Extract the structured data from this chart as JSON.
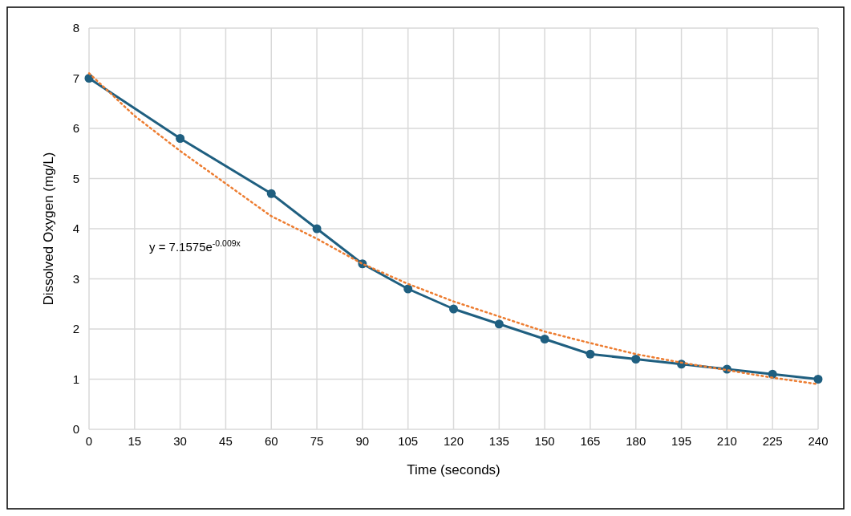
{
  "chart_data": {
    "type": "line",
    "xlabel": "Time (seconds)",
    "ylabel": "Dissolved Oxygen (mg/L)",
    "xlim": [
      0,
      240
    ],
    "xticks": [
      0,
      15,
      30,
      45,
      60,
      75,
      90,
      105,
      120,
      135,
      150,
      165,
      180,
      195,
      210,
      225,
      240
    ],
    "ylim": [
      0,
      8
    ],
    "yticks": [
      0,
      1,
      2,
      3,
      4,
      5,
      6,
      7,
      8
    ],
    "grid": true,
    "annotations": [
      "y = 7.1575e$^{-0.009x}$"
    ],
    "series": [
      {
        "color": "#1f5f80",
        "marker": "circle",
        "line_style": "solid",
        "x": [
          0,
          30,
          60,
          75,
          90,
          105,
          120,
          135,
          150,
          165,
          180,
          195,
          210,
          225,
          240
        ],
        "values": [
          7.0,
          5.8,
          4.7,
          4.0,
          3.3,
          2.8,
          2.4,
          2.1,
          1.8,
          1.5,
          1.4,
          1.3,
          1.2,
          1.1,
          1.0
        ]
      },
      {
        "color": "#ed7d31",
        "marker": "none",
        "line_style": "dotted",
        "x": [
          0,
          15,
          30,
          45,
          60,
          75,
          90,
          105,
          120,
          135,
          150,
          165,
          180,
          195,
          210,
          225,
          240
        ],
        "values": [
          7.1,
          6.25,
          5.55,
          4.9,
          4.25,
          3.8,
          3.3,
          2.9,
          2.55,
          2.25,
          1.95,
          1.72,
          1.5,
          1.33,
          1.18,
          1.03,
          0.9
        ]
      }
    ]
  }
}
